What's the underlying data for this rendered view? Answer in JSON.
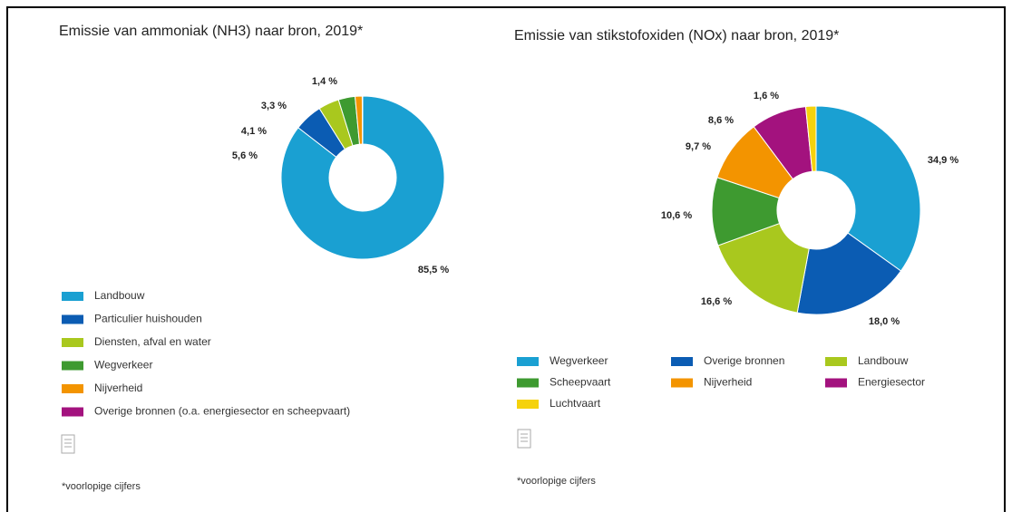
{
  "chart_data": [
    {
      "type": "pie",
      "title": "Emissie van ammoniak (NH3) naar bron, 2019*",
      "categories": [
        "Landbouw",
        "Particulier huishouden",
        "Diensten, afval en water",
        "Wegverkeer",
        "Nijverheid",
        "Overige bronnen (o.a. energiesector en scheepvaart)"
      ],
      "values": [
        85.5,
        5.6,
        4.1,
        3.3,
        1.4,
        0.1
      ],
      "value_labels": [
        "85,5 %",
        "5,6 %",
        "4,1 %",
        "3,3 %",
        "1,4 %",
        null
      ],
      "colors": [
        "#1aa0d2",
        "#0b5cb3",
        "#a9c81e",
        "#3e9a30",
        "#f39400",
        "#a3127e"
      ],
      "note": "*voorlopige cijfers"
    },
    {
      "type": "pie",
      "title": "Emissie van stikstofoxiden (NOx) naar bron, 2019*",
      "categories": [
        "Wegverkeer",
        "Overige bronnen",
        "Landbouw",
        "Scheepvaart",
        "Nijverheid",
        "Energiesector",
        "Luchtvaart"
      ],
      "values": [
        34.9,
        18.0,
        16.6,
        10.6,
        9.7,
        8.6,
        1.6
      ],
      "value_labels": [
        "34,9 %",
        "18,0 %",
        "16,6 %",
        "10,6 %",
        "9,7 %",
        "8,6 %",
        "1,6 %"
      ],
      "colors": [
        "#1aa0d2",
        "#0b5cb3",
        "#a9c81e",
        "#3e9a30",
        "#f39400",
        "#a3127e",
        "#f5d20c"
      ],
      "note": "*voorlopige cijfers"
    }
  ]
}
